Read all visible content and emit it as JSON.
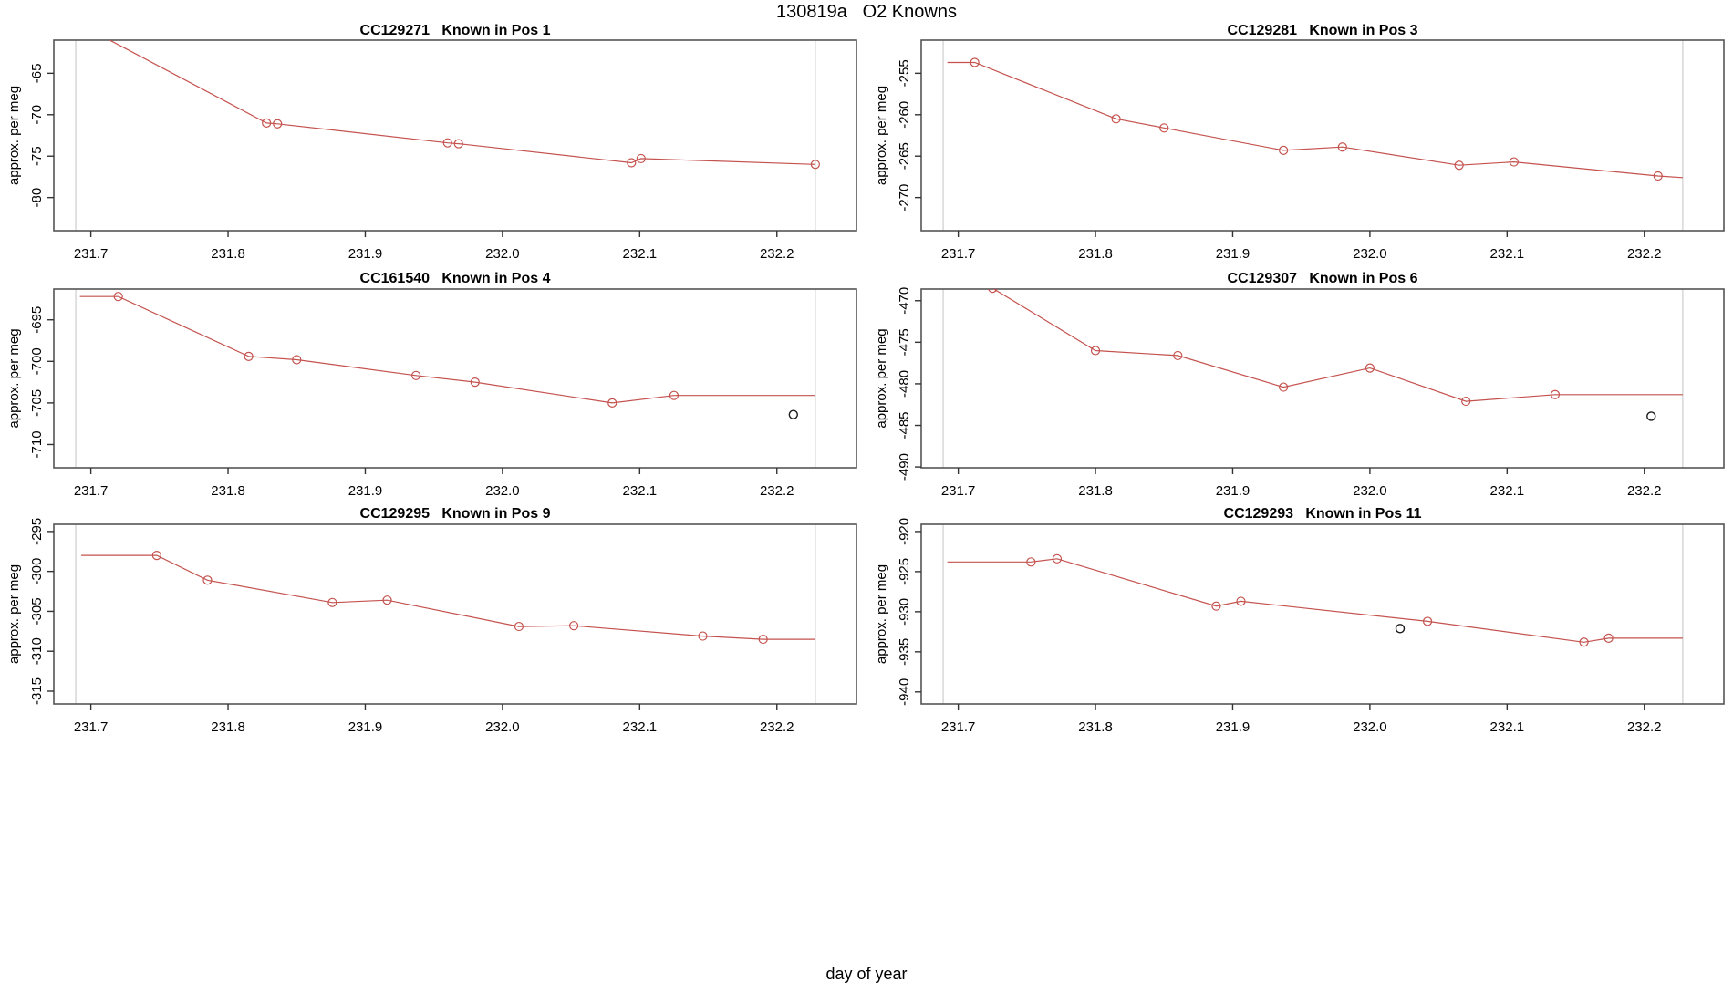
{
  "header": {
    "title": "130819a   O2 Knowns"
  },
  "footer": {
    "xlabel": "day of year"
  },
  "colors": {
    "series_line": "#c4524e",
    "marker_stroke": "#c4524e",
    "outlier_stroke": "#1a1a1a",
    "guide_line": "#d5d5d5",
    "panel_border": "#555555",
    "tick": "#333333",
    "text": "#000000"
  },
  "axes": {
    "ylabel": "approx. per meg",
    "xlim": [
      231.673,
      232.258
    ],
    "xticks": [
      231.7,
      231.8,
      231.9,
      232.0,
      232.1,
      232.2
    ],
    "xtick_labels": [
      "231.7",
      "231.8",
      "231.9",
      "232.0",
      "232.1",
      "232.2"
    ],
    "guide_x": [
      231.689,
      232.228
    ]
  },
  "chart_data": [
    {
      "type": "line",
      "id": "CC129271",
      "pos_label": "Known in Pos 1",
      "grid": {
        "col": "left",
        "row": 1
      },
      "ylim": [
        -84.0,
        -61.0
      ],
      "yticks": [
        -65,
        -70,
        -75,
        -80
      ],
      "ytick_labels": [
        "-65",
        "-70",
        "-75",
        "-80"
      ],
      "line": [
        [
          231.7,
          -59.8
        ],
        [
          231.828,
          -71.0
        ],
        [
          231.836,
          -71.1
        ],
        [
          231.96,
          -73.4
        ],
        [
          231.968,
          -73.5
        ],
        [
          232.094,
          -75.8
        ],
        [
          232.101,
          -75.3
        ],
        [
          232.228,
          -76.0
        ]
      ],
      "markers": [
        [
          231.828,
          -71.0
        ],
        [
          231.836,
          -71.1
        ],
        [
          231.96,
          -73.4
        ],
        [
          231.968,
          -73.5
        ],
        [
          232.094,
          -75.8
        ],
        [
          232.101,
          -75.3
        ],
        [
          232.228,
          -76.0
        ]
      ],
      "outliers": []
    },
    {
      "type": "line",
      "id": "CC129281",
      "pos_label": "Known in Pos 3",
      "grid": {
        "col": "right",
        "row": 1
      },
      "ylim": [
        -274.0,
        -251.0
      ],
      "yticks": [
        -255,
        -260,
        -265,
        -270
      ],
      "ytick_labels": [
        "-255",
        "-260",
        "-265",
        "-270"
      ],
      "line": [
        [
          231.692,
          -253.7
        ],
        [
          231.712,
          -253.7
        ],
        [
          231.815,
          -260.5
        ],
        [
          231.85,
          -261.6
        ],
        [
          231.937,
          -264.3
        ],
        [
          231.98,
          -263.9
        ],
        [
          232.065,
          -266.1
        ],
        [
          232.105,
          -265.7
        ],
        [
          232.21,
          -267.4
        ],
        [
          232.228,
          -267.6
        ]
      ],
      "markers": [
        [
          231.712,
          -253.7
        ],
        [
          231.815,
          -260.5
        ],
        [
          231.85,
          -261.6
        ],
        [
          231.937,
          -264.3
        ],
        [
          231.98,
          -263.9
        ],
        [
          232.065,
          -266.1
        ],
        [
          232.105,
          -265.7
        ],
        [
          232.21,
          -267.4
        ]
      ],
      "outliers": []
    },
    {
      "type": "line",
      "id": "CC161540",
      "pos_label": "Known in Pos 4",
      "grid": {
        "col": "left",
        "row": 2
      },
      "ylim": [
        -712.8,
        -691.3
      ],
      "yticks": [
        -695,
        -700,
        -705,
        -710
      ],
      "ytick_labels": [
        "-695",
        "-700",
        "-705",
        "-710"
      ],
      "line": [
        [
          231.692,
          -692.2
        ],
        [
          231.72,
          -692.2
        ],
        [
          231.815,
          -699.4
        ],
        [
          231.85,
          -699.8
        ],
        [
          231.937,
          -701.7
        ],
        [
          231.98,
          -702.5
        ],
        [
          232.08,
          -705.0
        ],
        [
          232.125,
          -704.1
        ],
        [
          232.228,
          -704.1
        ]
      ],
      "markers": [
        [
          231.72,
          -692.2
        ],
        [
          231.815,
          -699.4
        ],
        [
          231.85,
          -699.8
        ],
        [
          231.937,
          -701.7
        ],
        [
          231.98,
          -702.5
        ],
        [
          232.08,
          -705.0
        ],
        [
          232.125,
          -704.1
        ]
      ],
      "outliers": [
        [
          232.212,
          -706.4
        ]
      ]
    },
    {
      "type": "line",
      "id": "CC129307",
      "pos_label": "Known in Pos 6",
      "grid": {
        "col": "right",
        "row": 2
      },
      "ylim": [
        -490.1,
        -468.6
      ],
      "yticks": [
        -470,
        -475,
        -480,
        -485,
        -490
      ],
      "ytick_labels": [
        "-470",
        "-475",
        "-480",
        "-485",
        "-490"
      ],
      "line": [
        [
          231.725,
          -468.5
        ],
        [
          231.8,
          -476.0
        ],
        [
          231.86,
          -476.6
        ],
        [
          231.937,
          -480.4
        ],
        [
          232.0,
          -478.1
        ],
        [
          232.07,
          -482.1
        ],
        [
          232.135,
          -481.3
        ],
        [
          232.228,
          -481.3
        ]
      ],
      "markers": [
        [
          231.725,
          -468.5
        ],
        [
          231.8,
          -476.0
        ],
        [
          231.86,
          -476.6
        ],
        [
          231.937,
          -480.4
        ],
        [
          232.0,
          -478.1
        ],
        [
          232.07,
          -482.1
        ],
        [
          232.135,
          -481.3
        ]
      ],
      "outliers": [
        [
          232.205,
          -483.9
        ]
      ]
    },
    {
      "type": "line",
      "id": "CC129295",
      "pos_label": "Known in Pos 9",
      "grid": {
        "col": "left",
        "row": 3
      },
      "ylim": [
        -316.6,
        -294.1
      ],
      "yticks": [
        -295,
        -300,
        -305,
        -310,
        -315
      ],
      "ytick_labels": [
        "-295",
        "-300",
        "-305",
        "-310",
        "-315"
      ],
      "line": [
        [
          231.693,
          -298.0
        ],
        [
          231.748,
          -298.0
        ],
        [
          231.785,
          -301.1
        ],
        [
          231.876,
          -303.9
        ],
        [
          231.916,
          -303.6
        ],
        [
          232.012,
          -306.9
        ],
        [
          232.052,
          -306.8
        ],
        [
          232.146,
          -308.1
        ],
        [
          232.19,
          -308.5
        ],
        [
          232.228,
          -308.5
        ]
      ],
      "markers": [
        [
          231.748,
          -298.0
        ],
        [
          231.785,
          -301.1
        ],
        [
          231.876,
          -303.9
        ],
        [
          231.916,
          -303.6
        ],
        [
          232.012,
          -306.9
        ],
        [
          232.052,
          -306.8
        ],
        [
          232.146,
          -308.1
        ],
        [
          232.19,
          -308.5
        ]
      ],
      "outliers": []
    },
    {
      "type": "line",
      "id": "CC129293",
      "pos_label": "Known in Pos 11",
      "grid": {
        "col": "right",
        "row": 3
      },
      "ylim": [
        -941.5,
        -919.1
      ],
      "yticks": [
        -920,
        -925,
        -930,
        -935,
        -940
      ],
      "ytick_labels": [
        "-920",
        "-925",
        "-930",
        "-935",
        "-940"
      ],
      "line": [
        [
          231.692,
          -923.8
        ],
        [
          231.753,
          -923.8
        ],
        [
          231.772,
          -923.4
        ],
        [
          231.888,
          -929.3
        ],
        [
          231.906,
          -928.7
        ],
        [
          232.042,
          -931.2
        ],
        [
          232.156,
          -933.8
        ],
        [
          232.174,
          -933.3
        ],
        [
          232.228,
          -933.3
        ]
      ],
      "markers": [
        [
          231.753,
          -923.8
        ],
        [
          231.772,
          -923.4
        ],
        [
          231.888,
          -929.3
        ],
        [
          231.906,
          -928.7
        ],
        [
          232.042,
          -931.2
        ],
        [
          232.156,
          -933.8
        ],
        [
          232.174,
          -933.3
        ]
      ],
      "outliers": [
        [
          232.022,
          -932.1
        ]
      ]
    }
  ]
}
